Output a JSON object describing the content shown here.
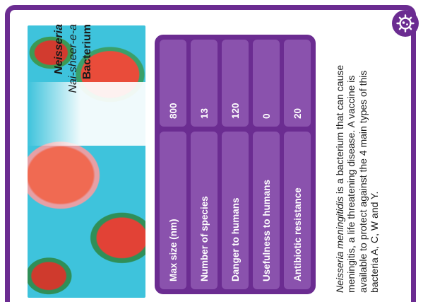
{
  "name": {
    "genus": "Neisseria",
    "pronunciation": "Nai-sheer-e-a",
    "type": "Bacterium"
  },
  "stats": [
    {
      "label": "Max size (nm)",
      "value": "800"
    },
    {
      "label": "Number of species",
      "value": "13"
    },
    {
      "label": "Danger to humans",
      "value": "120"
    },
    {
      "label": "Usefulness to humans",
      "value": "0"
    },
    {
      "label": "Antibiotic resistance",
      "value": "20"
    }
  ],
  "description": {
    "species": "Neisseria meningitidis",
    "text": " is a bacterium that can cause meningitis, a life threatening disease. A vaccine is available to protect against the 4 main types of this bacteria A, C, W and Y."
  },
  "icons": {
    "badge": "microbe-icon"
  },
  "colors": {
    "accent": "#6b2c91",
    "cell": "#8a52ad",
    "photo_background": "#3ec3dc"
  }
}
